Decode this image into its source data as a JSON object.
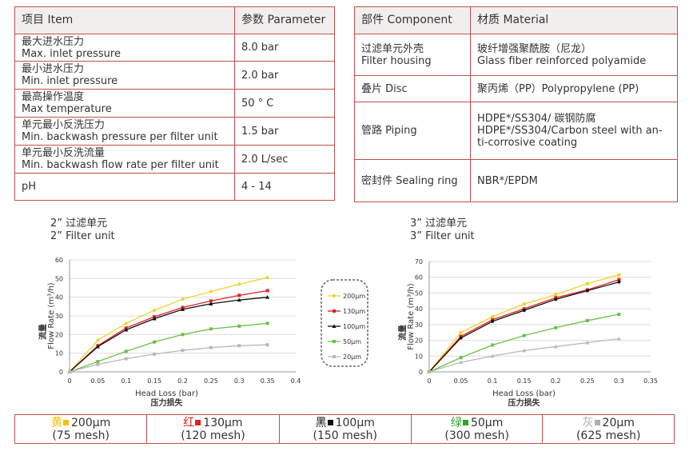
{
  "spec_table": {
    "header": [
      "项目 Item",
      "参数 Parameter"
    ],
    "rows": [
      {
        "cn": "最大进水压力",
        "en": "Max. inlet pressure",
        "value": "8.0 bar"
      },
      {
        "cn": "最小进水压力",
        "en": "Min. inlet pressure",
        "value": "2.0 bar"
      },
      {
        "cn": "最高操作温度",
        "en": "Max temperature",
        "value": "50 ° C"
      },
      {
        "cn": "单元最小反洗压力",
        "en": "Min. backwash pressure per filter unit",
        "value": "1.5 bar"
      },
      {
        "cn": "单元最小反洗流量",
        "en": "Min. backwash flow rate per filter unit",
        "value": "2.0 L/sec"
      },
      {
        "cn": "pH",
        "value": "4 - 14"
      }
    ]
  },
  "material_table": {
    "header": [
      "部件 Component",
      "材质 Material"
    ],
    "rows": [
      {
        "component": [
          "过滤单元外壳",
          "Filter housing"
        ],
        "material": [
          "玻纤增强聚酰胺（尼龙）",
          "Glass fiber reinforced polyamide"
        ]
      },
      {
        "component": [
          "叠片 Disc"
        ],
        "material": [
          "聚丙烯（PP）Polypropylene (PP)"
        ]
      },
      {
        "component": [
          "管路 Piping"
        ],
        "material": [
          "HDPE*/SS304/ 碳钢防腐",
          "HDPE*/SS304/Carbon steel with an-",
          "ti-corrosive coating"
        ]
      },
      {
        "component": [
          "密封件 Sealing ring"
        ],
        "material": [
          "NBR*/EPDM"
        ]
      }
    ]
  },
  "chart_data": [
    {
      "type": "line",
      "title": [
        "2” 过滤单元",
        "2” Filter unit"
      ],
      "x_label": [
        "Head Loss (bar)",
        "压力损失"
      ],
      "y_label": [
        "流量",
        "Flow Rate (m³/h)"
      ],
      "x": [
        0,
        0.05,
        0.1,
        0.15,
        0.2,
        0.25,
        0.3,
        0.35
      ],
      "xlim": [
        0,
        0.4
      ],
      "xticks": [
        0,
        0.05,
        0.1,
        0.15,
        0.2,
        0.25,
        0.3,
        0.35,
        0.4
      ],
      "ylim": [
        0,
        60
      ],
      "yticks": [
        0,
        10,
        20,
        30,
        40,
        50,
        60
      ],
      "grid": true,
      "series": [
        {
          "name": "200µm",
          "color": "#f2d22e",
          "marker": "circle",
          "values": [
            0,
            17,
            26,
            33,
            39,
            43,
            47,
            50.5
          ]
        },
        {
          "name": "130µm",
          "color": "#e02020",
          "marker": "square",
          "values": [
            0,
            14,
            23.5,
            29.5,
            34.5,
            38,
            41,
            43.5
          ]
        },
        {
          "name": "100µm",
          "color": "#111111",
          "marker": "triangle",
          "values": [
            0,
            13.5,
            22.5,
            28.5,
            33.5,
            36.5,
            38.5,
            40
          ]
        },
        {
          "name": "50µm",
          "color": "#6cbf4a",
          "marker": "square",
          "values": [
            0,
            5.5,
            11,
            16,
            20,
            23,
            24.5,
            26
          ]
        },
        {
          "name": "20µm",
          "color": "#b8b8b8",
          "marker": "square",
          "values": [
            0,
            4,
            7,
            9.5,
            11.5,
            13,
            14,
            14.5
          ]
        }
      ]
    },
    {
      "type": "line",
      "title": [
        "3” 过滤单元",
        "3” Filter unit"
      ],
      "x_label": [
        "Head Loss (bar)",
        "压力损失"
      ],
      "y_label": [
        "流量",
        "Flow Rate (m³/h)"
      ],
      "x": [
        0,
        0.05,
        0.1,
        0.15,
        0.2,
        0.25,
        0.3
      ],
      "xlim": [
        0,
        0.35
      ],
      "xticks": [
        0,
        0.05,
        0.1,
        0.15,
        0.2,
        0.25,
        0.3,
        0.35
      ],
      "ylim": [
        0,
        70
      ],
      "yticks": [
        0,
        10,
        20,
        30,
        40,
        50,
        60,
        70
      ],
      "grid": true,
      "series": [
        {
          "color": "#f2d22e",
          "marker": "square",
          "values": [
            0,
            25,
            35,
            43,
            49,
            56,
            61.5
          ]
        },
        {
          "color": "#e02020",
          "marker": "square",
          "values": [
            0,
            22.5,
            33,
            40,
            47,
            52,
            58.5
          ]
        },
        {
          "color": "#111111",
          "marker": "circle",
          "values": [
            0,
            21.5,
            32,
            39,
            46,
            51.5,
            57
          ]
        },
        {
          "color": "#6cbf4a",
          "marker": "square",
          "values": [
            0,
            9,
            17,
            23,
            28,
            32.5,
            36.5
          ]
        },
        {
          "color": "#b8b8b8",
          "marker": "triangle",
          "values": [
            0,
            6,
            10,
            13.5,
            16,
            18.5,
            21
          ]
        }
      ]
    }
  ],
  "mesh_table": [
    {
      "label": "黄",
      "color": "#f2c200",
      "size": "200µm",
      "mesh": "(75 mesh)"
    },
    {
      "label": "红",
      "color": "#e02020",
      "size": "130µm",
      "mesh": "(120 mesh)"
    },
    {
      "label": "黑",
      "color": "#111111",
      "size": "100µm",
      "mesh": "(150 mesh)"
    },
    {
      "label": "绿",
      "color": "#2aa52a",
      "size": "50µm",
      "mesh": "(300 mesh)"
    },
    {
      "label": "灰",
      "color": "#b0b0b0",
      "size": "20µm",
      "mesh": "(625 mesh)"
    }
  ]
}
